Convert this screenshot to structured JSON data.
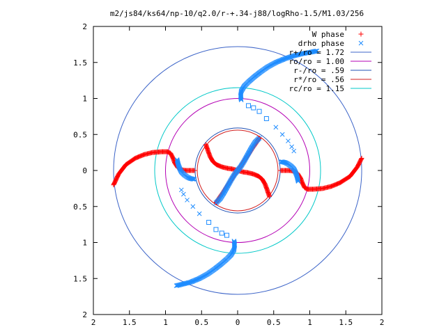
{
  "chart_data": {
    "type": "scatter",
    "title": "m2/js84/ks64/np-10/q2.0/r-+.34-j88/logRho-1.5/M1.03/256",
    "xlabel": "",
    "ylabel": "",
    "xlim": [
      -2,
      2
    ],
    "ylim": [
      -2,
      2
    ],
    "x_tick_values": [
      -2,
      -1.5,
      -1,
      -0.5,
      0,
      0.5,
      1,
      1.5,
      2
    ],
    "x_tick_labels": [
      "2",
      "1.5",
      "1",
      "0.5",
      "0",
      "0.5",
      "1",
      "1.5",
      "2"
    ],
    "y_tick_values": [
      2,
      1.5,
      1,
      0.5,
      0,
      -0.5,
      -1,
      -1.5,
      -2
    ],
    "y_tick_labels": [
      "2",
      "1.5",
      "1",
      "0.5",
      "0",
      "0.5",
      "1",
      "1.5",
      "2"
    ],
    "grid": false,
    "legend_position": "top-right",
    "series": [
      {
        "name": "W phase",
        "marker": "plus",
        "color": "#ff0000",
        "arms": [
          [
            [
              -1.72,
              -0.2
            ],
            [
              -1.65,
              -0.05
            ],
            [
              -1.55,
              0.08
            ],
            [
              -1.42,
              0.17
            ],
            [
              -1.3,
              0.22
            ],
            [
              -1.18,
              0.25
            ],
            [
              -1.05,
              0.26
            ],
            [
              -0.97,
              0.26
            ],
            [
              -0.93,
              0.24
            ],
            [
              -0.9,
              0.18
            ],
            [
              -0.87,
              0.1
            ],
            [
              -0.83,
              0.04
            ],
            [
              -0.78,
              0.01
            ],
            [
              -0.72,
              0.0
            ],
            [
              -0.65,
              0.0
            ],
            [
              -0.6,
              0.0
            ]
          ],
          [
            [
              1.72,
              0.17
            ],
            [
              1.66,
              0.05
            ],
            [
              1.56,
              -0.08
            ],
            [
              1.42,
              -0.17
            ],
            [
              1.3,
              -0.22
            ],
            [
              1.18,
              -0.25
            ],
            [
              1.05,
              -0.26
            ],
            [
              0.97,
              -0.26
            ],
            [
              0.93,
              -0.24
            ],
            [
              0.9,
              -0.18
            ],
            [
              0.87,
              -0.1
            ],
            [
              0.83,
              -0.04
            ],
            [
              0.78,
              -0.01
            ],
            [
              0.72,
              0.0
            ],
            [
              0.65,
              0.0
            ],
            [
              0.6,
              0.0
            ]
          ],
          [
            [
              -0.44,
              0.36
            ],
            [
              -0.41,
              0.27
            ],
            [
              -0.38,
              0.19
            ],
            [
              -0.34,
              0.12
            ],
            [
              -0.29,
              0.08
            ],
            [
              -0.22,
              0.05
            ],
            [
              -0.14,
              0.03
            ],
            [
              -0.07,
              0.02
            ],
            [
              0.0,
              0.0
            ],
            [
              0.07,
              -0.02
            ],
            [
              0.14,
              -0.03
            ],
            [
              0.22,
              -0.05
            ],
            [
              0.29,
              -0.08
            ],
            [
              0.34,
              -0.12
            ],
            [
              0.38,
              -0.19
            ],
            [
              0.41,
              -0.27
            ],
            [
              0.44,
              -0.36
            ]
          ],
          [
            [
              -0.3,
              -0.45
            ],
            [
              -0.25,
              -0.37
            ],
            [
              -0.2,
              -0.3
            ],
            [
              -0.15,
              -0.22
            ],
            [
              -0.1,
              -0.15
            ],
            [
              -0.05,
              -0.07
            ],
            [
              0.0,
              0.0
            ],
            [
              0.05,
              0.07
            ],
            [
              0.1,
              0.15
            ],
            [
              0.15,
              0.22
            ],
            [
              0.2,
              0.3
            ],
            [
              0.25,
              0.37
            ],
            [
              0.3,
              0.45
            ]
          ]
        ]
      },
      {
        "name": "drho phase",
        "marker": "x",
        "color": "#1e8cff",
        "arms": [
          [
            [
              0.05,
              0.98
            ],
            [
              0.04,
              1.03
            ],
            [
              0.05,
              1.1
            ],
            [
              0.09,
              1.17
            ],
            [
              0.15,
              1.23
            ],
            [
              0.23,
              1.3
            ],
            [
              0.32,
              1.37
            ],
            [
              0.42,
              1.44
            ],
            [
              0.53,
              1.5
            ],
            [
              0.65,
              1.55
            ],
            [
              0.77,
              1.59
            ],
            [
              0.89,
              1.62
            ],
            [
              1.0,
              1.64
            ],
            [
              1.1,
              1.66
            ]
          ],
          [
            [
              -0.05,
              -0.98
            ],
            [
              -0.04,
              -1.03
            ],
            [
              -0.05,
              -1.1
            ],
            [
              -0.09,
              -1.17
            ],
            [
              -0.15,
              -1.23
            ],
            [
              -0.23,
              -1.3
            ],
            [
              -0.32,
              -1.37
            ],
            [
              -0.42,
              -1.44
            ],
            [
              -0.53,
              -1.5
            ],
            [
              -0.65,
              -1.55
            ],
            [
              -0.77,
              -1.58
            ],
            [
              -0.85,
              -1.6
            ]
          ],
          [
            [
              0.6,
              0.12
            ],
            [
              0.62,
              0.12
            ],
            [
              0.66,
              0.11
            ],
            [
              0.7,
              0.09
            ],
            [
              0.74,
              0.06
            ],
            [
              0.78,
              0.02
            ],
            [
              0.8,
              -0.02
            ],
            [
              0.82,
              -0.07
            ],
            [
              0.83,
              -0.11
            ],
            [
              0.84,
              -0.15
            ]
          ],
          [
            [
              -0.6,
              -0.12
            ],
            [
              -0.62,
              -0.12
            ],
            [
              -0.66,
              -0.11
            ],
            [
              -0.7,
              -0.09
            ],
            [
              -0.74,
              -0.06
            ],
            [
              -0.78,
              -0.02
            ],
            [
              -0.8,
              0.02
            ],
            [
              -0.82,
              0.07
            ],
            [
              -0.83,
              0.11
            ],
            [
              -0.84,
              0.15
            ]
          ],
          [
            [
              0.3,
              0.45
            ],
            [
              0.24,
              0.39
            ],
            [
              0.19,
              0.31
            ],
            [
              0.14,
              0.22
            ],
            [
              0.09,
              0.13
            ],
            [
              0.04,
              0.05
            ],
            [
              0.0,
              0.0
            ],
            [
              -0.04,
              -0.05
            ],
            [
              -0.09,
              -0.13
            ],
            [
              -0.14,
              -0.22
            ],
            [
              -0.19,
              -0.31
            ],
            [
              -0.24,
              -0.39
            ],
            [
              -0.3,
              -0.45
            ]
          ]
        ],
        "sparse_points": [
          [
            0.15,
            0.9
          ],
          [
            0.22,
            0.87
          ],
          [
            0.3,
            0.82
          ],
          [
            0.4,
            0.72
          ],
          [
            0.53,
            0.6
          ],
          [
            0.62,
            0.5
          ],
          [
            0.7,
            0.41
          ],
          [
            0.75,
            0.33
          ],
          [
            0.78,
            0.27
          ],
          [
            -0.15,
            -0.9
          ],
          [
            -0.22,
            -0.87
          ],
          [
            -0.3,
            -0.82
          ],
          [
            -0.4,
            -0.72
          ],
          [
            -0.53,
            -0.6
          ],
          [
            -0.62,
            -0.5
          ],
          [
            -0.7,
            -0.41
          ],
          [
            -0.75,
            -0.33
          ],
          [
            -0.78,
            -0.27
          ]
        ]
      }
    ],
    "circles": [
      {
        "name": "r+/ro = 1.72",
        "radius": 1.72,
        "color": "#3c64c8"
      },
      {
        "name": "ro/ro = 1.00",
        "radius": 1.0,
        "color": "#b400b4"
      },
      {
        "name": "r-/ro = .59",
        "radius": 0.59,
        "color": "#2050b4"
      },
      {
        "name": "r*/ro = .56",
        "radius": 0.56,
        "color": "#d21e1e"
      },
      {
        "name": "rc/ro = 1.15",
        "radius": 1.15,
        "color": "#00c8c8"
      }
    ]
  }
}
